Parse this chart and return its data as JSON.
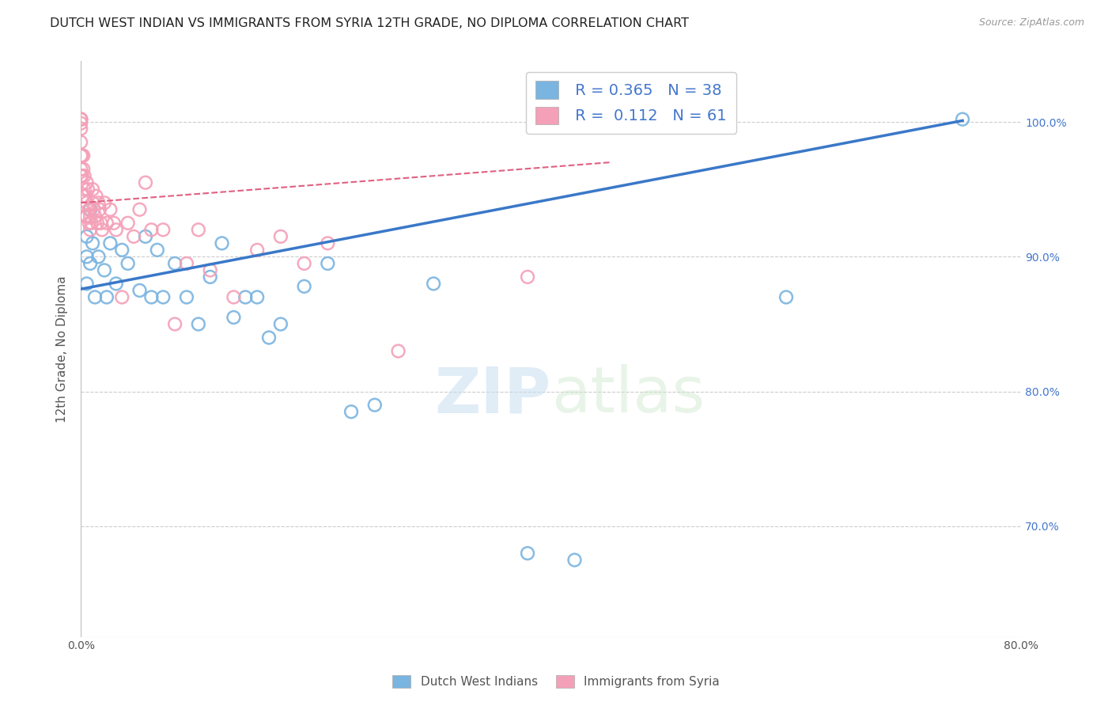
{
  "title": "DUTCH WEST INDIAN VS IMMIGRANTS FROM SYRIA 12TH GRADE, NO DIPLOMA CORRELATION CHART",
  "source": "Source: ZipAtlas.com",
  "ylabel": "12th Grade, No Diploma",
  "watermark_zip": "ZIP",
  "watermark_atlas": "atlas",
  "blue_R": 0.365,
  "blue_N": 38,
  "pink_R": 0.112,
  "pink_N": 61,
  "blue_color": "#7ab4e0",
  "pink_color": "#f4a0b8",
  "blue_line_color": "#3a78c8",
  "pink_line_color": "#e06080",
  "xmin": 0.0,
  "xmax": 0.8,
  "ymin": 0.618,
  "ymax": 1.045,
  "yticks": [
    0.7,
    0.8,
    0.9,
    1.0
  ],
  "ytick_labels": [
    "70.0%",
    "80.0%",
    "90.0%",
    "100.0%"
  ],
  "xticks": [
    0.0,
    0.8
  ],
  "xtick_labels": [
    "0.0%",
    "80.0%"
  ],
  "legend_labels": [
    "Dutch West Indians",
    "Immigrants from Syria"
  ],
  "blue_line_x0": 0.0,
  "blue_line_y0": 0.876,
  "blue_line_x1": 0.75,
  "blue_line_y1": 1.001,
  "pink_line_x0": 0.0,
  "pink_line_y0": 0.94,
  "pink_line_x1": 0.45,
  "pink_line_y1": 0.97,
  "blue_scatter_x": [
    0.005,
    0.005,
    0.005,
    0.008,
    0.008,
    0.01,
    0.012,
    0.015,
    0.02,
    0.022,
    0.025,
    0.03,
    0.035,
    0.04,
    0.05,
    0.055,
    0.06,
    0.065,
    0.07,
    0.08,
    0.09,
    0.1,
    0.11,
    0.12,
    0.13,
    0.14,
    0.15,
    0.16,
    0.17,
    0.19,
    0.21,
    0.23,
    0.25,
    0.3,
    0.38,
    0.42,
    0.6,
    0.75
  ],
  "blue_scatter_y": [
    0.9,
    0.915,
    0.88,
    0.935,
    0.895,
    0.91,
    0.87,
    0.9,
    0.89,
    0.87,
    0.91,
    0.88,
    0.905,
    0.895,
    0.875,
    0.915,
    0.87,
    0.905,
    0.87,
    0.895,
    0.87,
    0.85,
    0.885,
    0.91,
    0.855,
    0.87,
    0.87,
    0.84,
    0.85,
    0.878,
    0.895,
    0.785,
    0.79,
    0.88,
    0.68,
    0.675,
    0.87,
    1.002
  ],
  "pink_scatter_x": [
    0.0,
    0.0,
    0.0,
    0.0,
    0.0,
    0.0,
    0.0,
    0.0,
    0.0,
    0.0,
    0.001,
    0.001,
    0.002,
    0.002,
    0.002,
    0.003,
    0.003,
    0.004,
    0.004,
    0.005,
    0.005,
    0.005,
    0.006,
    0.007,
    0.007,
    0.008,
    0.008,
    0.009,
    0.01,
    0.01,
    0.011,
    0.012,
    0.013,
    0.014,
    0.015,
    0.016,
    0.017,
    0.018,
    0.02,
    0.022,
    0.025,
    0.028,
    0.03,
    0.035,
    0.04,
    0.045,
    0.05,
    0.055,
    0.06,
    0.07,
    0.08,
    0.09,
    0.1,
    0.11,
    0.13,
    0.15,
    0.17,
    0.19,
    0.21,
    0.27,
    0.38
  ],
  "pink_scatter_y": [
    0.96,
    0.975,
    0.985,
    0.965,
    0.995,
    1.002,
    1.002,
    1.002,
    1.002,
    0.999,
    0.975,
    0.96,
    0.975,
    0.965,
    0.945,
    0.96,
    0.95,
    0.945,
    0.93,
    0.955,
    0.94,
    0.93,
    0.95,
    0.935,
    0.925,
    0.93,
    0.92,
    0.925,
    0.95,
    0.94,
    0.935,
    0.93,
    0.945,
    0.925,
    0.94,
    0.935,
    0.925,
    0.92,
    0.94,
    0.925,
    0.935,
    0.925,
    0.92,
    0.87,
    0.925,
    0.915,
    0.935,
    0.955,
    0.92,
    0.92,
    0.85,
    0.895,
    0.92,
    0.89,
    0.87,
    0.905,
    0.915,
    0.895,
    0.91,
    0.83,
    0.885
  ],
  "title_fontsize": 11.5,
  "axis_label_fontsize": 11,
  "tick_fontsize": 10,
  "legend_fontsize": 14
}
